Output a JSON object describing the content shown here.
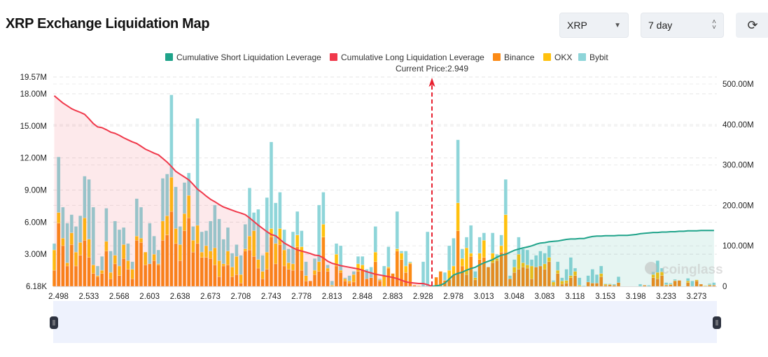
{
  "header": {
    "title": "XRP Exchange Liquidation Map",
    "coin_select": "XRP",
    "period_select": "7 day",
    "refresh_icon": "refresh-icon"
  },
  "chart_data": {
    "type": "bar",
    "current_price_label": "Current Price:2.949",
    "legend": [
      "Cumulative Short Liquidation Leverage",
      "Cumulative Long Liquidation Leverage",
      "Binance",
      "OKX",
      "Bybit"
    ],
    "legend_position": "top-center",
    "colors": {
      "short": "#1fa38a",
      "long": "#f0394b",
      "binance": "#fb8a16",
      "okx": "#ffc10e",
      "bybit": "#8ed5d9"
    },
    "x_tick_labels": [
      "2.498",
      "2.533",
      "2.568",
      "2.603",
      "2.638",
      "2.673",
      "2.708",
      "2.743",
      "2.778",
      "2.813",
      "2.848",
      "2.883",
      "2.928",
      "2.978",
      "3.013",
      "3.048",
      "3.083",
      "3.118",
      "3.153",
      "3.198",
      "3.233",
      "3.273"
    ],
    "y_left": {
      "ticks": [
        "6.18K",
        "3.00M",
        "6.00M",
        "9.00M",
        "12.00M",
        "15.00M",
        "18.00M",
        "19.57M"
      ],
      "tick_values": [
        0.00618,
        3,
        6,
        9,
        12,
        15,
        18,
        19.57
      ],
      "range": [
        0.00618,
        19.57
      ],
      "unit": "M"
    },
    "y_right": {
      "ticks": [
        "0",
        "100.00M",
        "200.00M",
        "300.00M",
        "400.00M",
        "500.00M"
      ],
      "tick_values": [
        0,
        100,
        200,
        300,
        400,
        500
      ],
      "range": [
        0,
        520
      ],
      "unit": "M"
    },
    "grid": true,
    "current_price_index": 87,
    "series": [
      {
        "name": "Binance",
        "stack": true,
        "values": [
          1.5,
          5.9,
          3.8,
          1.9,
          3.9,
          1.9,
          2.9,
          4.3,
          2.7,
          1.2,
          0.9,
          1.2,
          3.3,
          0.7,
          2.1,
          1.0,
          2.6,
          1.6,
          0.7,
          4.3,
          4.1,
          2.0,
          2.1,
          2.4,
          2.0,
          4.3,
          4.8,
          7.0,
          4.0,
          2.4,
          5.2,
          6.4,
          3.2,
          4.0,
          2.7,
          2.7,
          2.6,
          2.0,
          0.9,
          1.9,
          2.0,
          0.9,
          1.1,
          0.3,
          3.3,
          3.4,
          2.8,
          1.7,
          0.7,
          1.6,
          4.6,
          2.1,
          3.9,
          1.9,
          1.6,
          1.5,
          3.7,
          1.5,
          0.5,
          0.5,
          1.1,
          1.4,
          4.6,
          1.4,
          0,
          1.9,
          1.3,
          0.5,
          0.3,
          0.4,
          1.4,
          1.5,
          0.7,
          0.8,
          2.3,
          0.5,
          0,
          1.7,
          1.2,
          3.3,
          2.5,
          1.3,
          2.1,
          0.1,
          0,
          0,
          0,
          0,
          0.85,
          1.4,
          0.55,
          0.65,
          1.1,
          5.2,
          1.9,
          1.1,
          2.8,
          0.6,
          2.5,
          2.7,
          1.8,
          2.2,
          2.4,
          3.2,
          3.2,
          0.7,
          1.3,
          1.6,
          1.8,
          1.7,
          0.7,
          1.8,
          1.9,
          1.6,
          2.3,
          0.1,
          1.2,
          0.2,
          0.3,
          0.8,
          1.0,
          0,
          0,
          0.4,
          0.3,
          0.3,
          0.9,
          0.1,
          0.15,
          0.1,
          0.35,
          0,
          0,
          0,
          0,
          0,
          0.1,
          0,
          0.8,
          0.7,
          1.0,
          0.1,
          0.15,
          0.5,
          0.55,
          0,
          0.35,
          0,
          0.5,
          0.2,
          0,
          0.1,
          0.1
        ]
      },
      {
        "name": "OKX",
        "stack": true,
        "values": [
          1.9,
          1.0,
          0.7,
          0.3,
          1.1,
          1.3,
          1.2,
          2.1,
          1.7,
          0.8,
          0.1,
          0.3,
          0.9,
          0.6,
          0.8,
          0.9,
          1.3,
          0.8,
          0.9,
          0.4,
          0.4,
          1.2,
          0,
          0.6,
          0.1,
          1.8,
          1.8,
          3.2,
          1.4,
          1.5,
          1.6,
          2.1,
          1.1,
          1.7,
          0.5,
          1.1,
          0.7,
          1.6,
          1.5,
          0.2,
          1.3,
          0.9,
          1.7,
          0.8,
          0.2,
          1.3,
          2.4,
          0.8,
          0.7,
          1.6,
          0.8,
          1.9,
          1.5,
          1.5,
          0.6,
          0.6,
          1.1,
          2.2,
          0.5,
          0,
          0.4,
          0.9,
          1.2,
          0.3,
          0.1,
          1.1,
          0.2,
          0.2,
          0.2,
          0.7,
          0.7,
          0.5,
          0,
          0,
          0.9,
          0.1,
          1.0,
          0.1,
          0,
          0.2,
          0.6,
          0.6,
          0.1,
          0,
          0.05,
          0,
          0,
          0,
          0,
          0,
          0,
          0.85,
          0.8,
          2.6,
          0.7,
          2.5,
          0.3,
          0.2,
          0.6,
          1.6,
          0,
          0.9,
          0.2,
          0.6,
          3.5,
          0,
          0.5,
          1.4,
          0.4,
          0.3,
          1.2,
          0,
          0,
          0.5,
          0.4,
          0.3,
          0.3,
          0.3,
          0.25,
          0.2,
          0.4,
          0.1,
          0,
          0,
          0,
          0,
          0.3,
          0.1,
          0.05,
          0,
          0,
          0,
          0,
          0,
          0,
          0,
          0,
          0,
          0.3,
          0.6,
          0.35,
          0.05,
          0.05,
          0.05,
          0,
          0,
          0.15,
          0,
          0.1,
          0,
          0.05,
          0.05,
          0
        ]
      },
      {
        "name": "Bybit",
        "stack": true,
        "values": [
          0.6,
          5.2,
          2.9,
          3.7,
          1.7,
          2.4,
          2.5,
          3.9,
          5.6,
          5.4,
          0.9,
          1.3,
          3.1,
          2.0,
          3.2,
          3.4,
          1.6,
          1.6,
          0.7,
          3.5,
          2.9,
          0,
          3.8,
          1.7,
          1.3,
          4.0,
          3.9,
          7.7,
          3.9,
          1.7,
          2.9,
          2.1,
          1.3,
          10.0,
          1.9,
          1.4,
          2.8,
          4.0,
          3.9,
          2.3,
          2.2,
          1.3,
          1.1,
          1.8,
          2.3,
          4.5,
          1.7,
          4.7,
          1.5,
          5.1,
          8.1,
          3.8,
          3.4,
          1.9,
          1.3,
          3.0,
          2.2,
          1.5,
          1.3,
          0,
          1.1,
          5.3,
          3.0,
          0.3,
          0.4,
          1.0,
          2.3,
          0.1,
          0.5,
          0.3,
          0.7,
          0.8,
          0.9,
          1.0,
          2.4,
          0.1,
          0.9,
          1.9,
          0,
          3.5,
          0.2,
          1.4,
          0.1,
          0,
          0,
          2.3,
          5.1,
          0,
          0,
          0,
          0.75,
          2.3,
          2.6,
          5.9,
          0.9,
          1.0,
          2.6,
          0.6,
          1.5,
          0.7,
          0,
          1.9,
          0.4,
          1.0,
          3.3,
          0.3,
          0.7,
          1.6,
          1.3,
          1.4,
          0.6,
          1.1,
          1.4,
          1.0,
          1.1,
          0.15,
          0.8,
          0.3,
          1.05,
          1.7,
          0.3,
          0.7,
          0.05,
          0.6,
          1.3,
          0.8,
          0.7,
          0.05,
          0.05,
          0.1,
          0.55,
          0,
          0,
          0,
          0,
          0.2,
          0,
          0.1,
          0.25,
          1.1,
          0.35,
          0.2,
          0.1,
          0.1,
          0,
          0,
          0.25,
          0.5,
          0,
          0,
          0,
          0.1,
          0.25
        ]
      },
      {
        "name": "Cumulative Long Liquidation Leverage",
        "axis": "right",
        "start_index": 0,
        "values": [
          471,
          462,
          453,
          446,
          439,
          434,
          430,
          425,
          414,
          402,
          394,
          392,
          387,
          381,
          378,
          373,
          367,
          362,
          357,
          353,
          346,
          339,
          334,
          329,
          325,
          316,
          307,
          296,
          284,
          277,
          270,
          263,
          252,
          240,
          232,
          223,
          215,
          209,
          202,
          196,
          192,
          188,
          184,
          181,
          177,
          169,
          160,
          151,
          143,
          135,
          128,
          125,
          116,
          107,
          101,
          95,
          90,
          87,
          84,
          81,
          77,
          76,
          70,
          62,
          57,
          54,
          51,
          49,
          47,
          45,
          43,
          40,
          36,
          33,
          30,
          28,
          26,
          24,
          22,
          19,
          15,
          11,
          9,
          8,
          7,
          7,
          4,
          0
        ]
      },
      {
        "name": "Cumulative Short Liquidation Leverage",
        "axis": "right",
        "start_index": 87,
        "values": [
          0,
          1,
          3,
          8,
          18,
          28,
          32,
          35,
          40,
          44,
          47,
          53,
          58,
          62,
          66,
          72,
          77,
          79,
          84,
          89,
          92,
          95,
          97,
          100,
          104,
          107,
          108,
          110,
          111,
          112,
          114,
          116,
          117,
          117,
          118,
          118,
          121,
          123,
          124,
          124,
          125,
          125,
          125,
          126,
          126,
          126,
          127,
          128,
          130,
          131,
          132,
          133,
          133,
          134,
          134,
          135,
          135,
          136,
          136,
          137,
          137,
          137,
          138,
          138,
          138,
          138
        ]
      }
    ],
    "watermark": "coinglass"
  },
  "slider": {
    "left_handle_icon": "drag-handle-icon",
    "right_handle_icon": "drag-handle-icon"
  }
}
